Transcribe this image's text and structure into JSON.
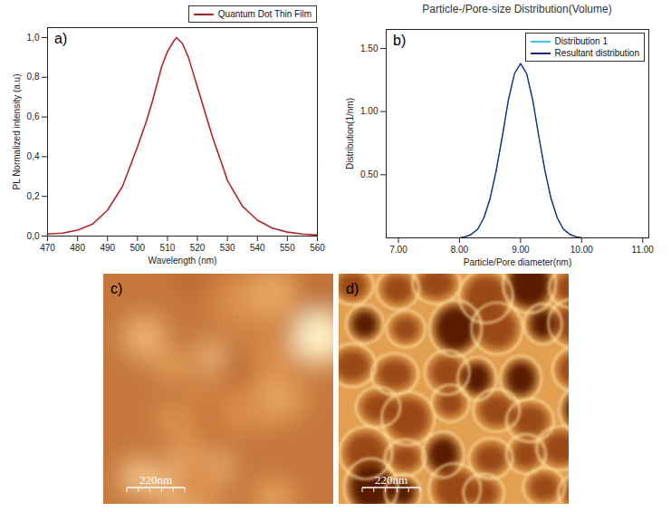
{
  "chart_data": [
    {
      "type": "line",
      "x_label": "Wavelength (nm)",
      "y_label": "PL Normalized intensity (a.u)",
      "annotations": [
        "a)"
      ],
      "x": [
        470,
        475,
        480,
        485,
        490,
        495,
        500,
        503,
        505,
        508,
        510,
        512,
        513,
        515,
        517,
        520,
        523,
        525,
        528,
        530,
        535,
        540,
        545,
        550,
        555,
        560
      ],
      "series": [
        {
          "name": "Quantum Dot Thin Film",
          "color": "#b3262b",
          "values": [
            0.01,
            0.015,
            0.03,
            0.06,
            0.13,
            0.25,
            0.45,
            0.58,
            0.68,
            0.85,
            0.93,
            0.98,
            1.0,
            0.97,
            0.9,
            0.75,
            0.6,
            0.5,
            0.37,
            0.28,
            0.15,
            0.08,
            0.04,
            0.02,
            0.01,
            0.005
          ]
        }
      ],
      "xlim": [
        470,
        560
      ],
      "xticks": [
        470,
        480,
        490,
        500,
        510,
        520,
        530,
        540,
        550,
        560
      ],
      "ylim": [
        0,
        1.05
      ],
      "yticks": [
        {
          "value": 0,
          "label": "0,0"
        },
        {
          "value": 0.2,
          "label": "0,2"
        },
        {
          "value": 0.4,
          "label": "0,4"
        },
        {
          "value": 0.6,
          "label": "0,6"
        },
        {
          "value": 0.8,
          "label": "0,8"
        },
        {
          "value": 1.0,
          "label": "1,0"
        }
      ],
      "grid": false,
      "legend": "top-right"
    },
    {
      "type": "line",
      "title": "Particle-/Pore-size Distribution(Volume)",
      "x_label": "Particle/Pore diameter(nm)",
      "y_label": "Distribution(1/nm)",
      "annotations": [
        "b)"
      ],
      "x": [
        8.0,
        8.1,
        8.2,
        8.3,
        8.4,
        8.5,
        8.6,
        8.7,
        8.8,
        8.9,
        9.0,
        9.1,
        9.2,
        9.3,
        9.4,
        9.5,
        9.6,
        9.7,
        9.8,
        9.9,
        10.0
      ],
      "series": [
        {
          "name": "Distribution 1",
          "color": "#3fc6e6",
          "values": [
            0.0,
            0.01,
            0.03,
            0.07,
            0.16,
            0.31,
            0.53,
            0.8,
            1.09,
            1.3,
            1.38,
            1.3,
            1.09,
            0.8,
            0.53,
            0.31,
            0.16,
            0.07,
            0.03,
            0.01,
            0.0
          ]
        },
        {
          "name": "Resultant distribution",
          "color": "#1f2a78",
          "values": [
            0.0,
            0.01,
            0.03,
            0.07,
            0.16,
            0.31,
            0.53,
            0.8,
            1.09,
            1.3,
            1.38,
            1.3,
            1.09,
            0.8,
            0.53,
            0.31,
            0.16,
            0.07,
            0.03,
            0.01,
            0.0
          ]
        }
      ],
      "xlim": [
        6.8,
        11.1
      ],
      "xticks": [
        {
          "value": 7,
          "label": "7.00"
        },
        {
          "value": 8,
          "label": "8.00"
        },
        {
          "value": 9,
          "label": "9.00"
        },
        {
          "value": 10,
          "label": "10.00"
        },
        {
          "value": 11,
          "label": "11.00"
        }
      ],
      "ylim": [
        0,
        1.65
      ],
      "yticks": [
        {
          "value": 0.5,
          "label": "0.50"
        },
        {
          "value": 1.0,
          "label": "1.00"
        },
        {
          "value": 1.5,
          "label": "1.50"
        }
      ],
      "grid": false,
      "legend": "top-right"
    }
  ],
  "images": [
    {
      "label": "c)",
      "scale_bar": "220nm"
    },
    {
      "label": "d)",
      "scale_bar": "220nm"
    }
  ]
}
